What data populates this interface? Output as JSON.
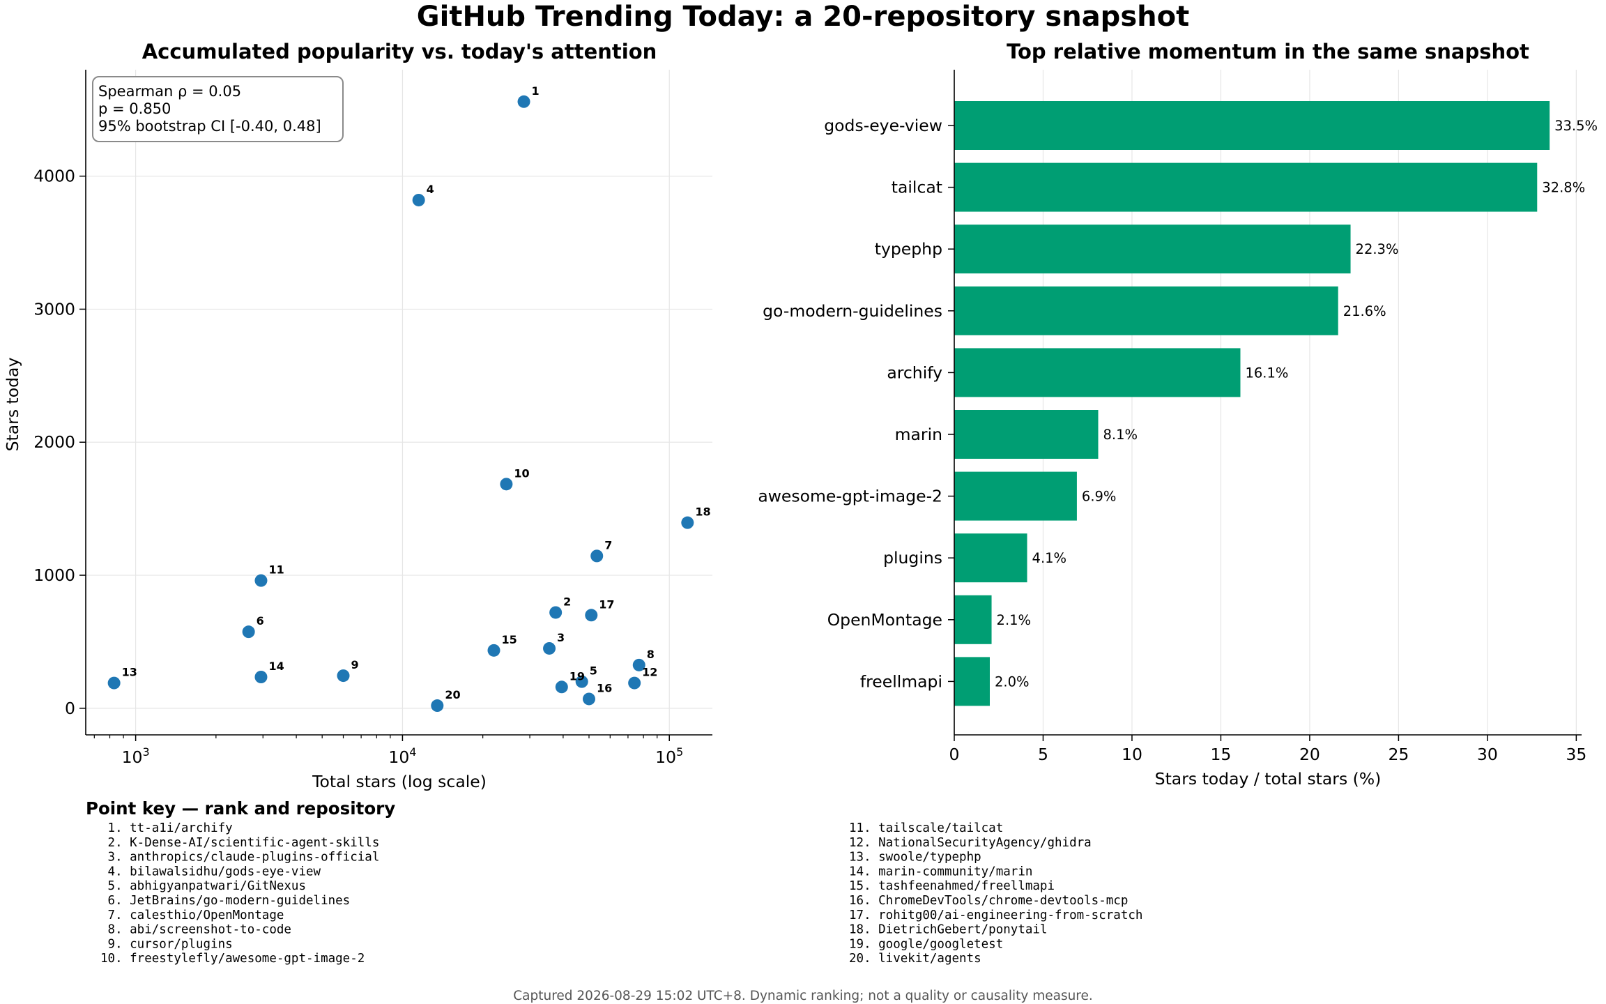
{
  "figure": {
    "title": "GitHub Trending Today: a 20-repository snapshot",
    "footer": "Captured 2026-08-29 15:02 UTC+8. Dynamic ranking; not a quality or causality measure."
  },
  "stats_box": {
    "line1": "Spearman ρ = 0.05",
    "line2": "p = 0.850",
    "line3": "95% bootstrap CI [-0.40, 0.48]"
  },
  "point_key": {
    "title": "Point key — rank and repository",
    "items": [
      " 1. tt-a1i/archify",
      " 2. K-Dense-AI/scientific-agent-skills",
      " 3. anthropics/claude-plugins-official",
      " 4. bilawalsidhu/gods-eye-view",
      " 5. abhigyanpatwari/GitNexus",
      " 6. JetBrains/go-modern-guidelines",
      " 7. calesthio/OpenMontage",
      " 8. abi/screenshot-to-code",
      " 9. cursor/plugins",
      "10. freestylefly/awesome-gpt-image-2",
      "11. tailscale/tailcat",
      "12. NationalSecurityAgency/ghidra",
      "13. swoole/typephp",
      "14. marin-community/marin",
      "15. tashfeenahmed/freellmapi",
      "16. ChromeDevTools/chrome-devtools-mcp",
      "17. rohitg00/ai-engineering-from-scratch",
      "18. DietrichGebert/ponytail",
      "19. google/googletest",
      "20. livekit/agents"
    ]
  },
  "colors": {
    "scatter": "#1f77b4",
    "bar": "#009e73",
    "grid": "#e6e6e6"
  },
  "chart_data": [
    {
      "type": "scatter",
      "title": "Accumulated popularity vs. today's attention",
      "xlabel": "Total stars (log scale)",
      "ylabel": "Stars today",
      "xscale": "log",
      "xlim": [
        650,
        145000
      ],
      "ylim": [
        -200,
        4800
      ],
      "xticks": [
        1000,
        10000,
        100000
      ],
      "xtick_labels": [
        {
          "base": "10",
          "exp": "3"
        },
        {
          "base": "10",
          "exp": "4"
        },
        {
          "base": "10",
          "exp": "5"
        }
      ],
      "yticks": [
        0,
        1000,
        2000,
        3000,
        4000
      ],
      "ytick_labels": [
        "0",
        "1000",
        "2000",
        "3000",
        "4000"
      ],
      "grid": true,
      "points": [
        {
          "label": "1",
          "x": 28500,
          "y": 4560
        },
        {
          "label": "2",
          "x": 37500,
          "y": 720
        },
        {
          "label": "3",
          "x": 35500,
          "y": 450
        },
        {
          "label": "4",
          "x": 11500,
          "y": 3820
        },
        {
          "label": "5",
          "x": 47000,
          "y": 200
        },
        {
          "label": "6",
          "x": 2650,
          "y": 575
        },
        {
          "label": "7",
          "x": 53500,
          "y": 1145
        },
        {
          "label": "8",
          "x": 77000,
          "y": 325
        },
        {
          "label": "9",
          "x": 6000,
          "y": 245
        },
        {
          "label": "10",
          "x": 24500,
          "y": 1685
        },
        {
          "label": "11",
          "x": 2950,
          "y": 960
        },
        {
          "label": "12",
          "x": 74000,
          "y": 190
        },
        {
          "label": "13",
          "x": 830,
          "y": 190
        },
        {
          "label": "14",
          "x": 2950,
          "y": 235
        },
        {
          "label": "15",
          "x": 22000,
          "y": 435
        },
        {
          "label": "16",
          "x": 50000,
          "y": 70
        },
        {
          "label": "17",
          "x": 51000,
          "y": 700
        },
        {
          "label": "18",
          "x": 117000,
          "y": 1395
        },
        {
          "label": "19",
          "x": 39500,
          "y": 160
        },
        {
          "label": "20",
          "x": 13500,
          "y": 20
        }
      ]
    },
    {
      "type": "bar",
      "orientation": "horizontal",
      "title": "Top relative momentum in the same snapshot",
      "xlabel": "Stars today / total stars (%)",
      "xlim": [
        0,
        35.3
      ],
      "xticks": [
        0,
        5,
        10,
        15,
        20,
        25,
        30,
        35
      ],
      "xtick_labels": [
        "0",
        "5",
        "10",
        "15",
        "20",
        "25",
        "30",
        "35"
      ],
      "grid": true,
      "categories": [
        "gods-eye-view",
        "tailcat",
        "typephp",
        "go-modern-guidelines",
        "archify",
        "marin",
        "awesome-gpt-image-2",
        "plugins",
        "OpenMontage",
        "freellmapi"
      ],
      "values": [
        33.5,
        32.8,
        22.3,
        21.6,
        16.1,
        8.1,
        6.9,
        4.1,
        2.1,
        2.0
      ],
      "value_labels": [
        "33.5%",
        "32.8%",
        "22.3%",
        "21.6%",
        "16.1%",
        "8.1%",
        "6.9%",
        "4.1%",
        "2.1%",
        "2.0%"
      ]
    }
  ]
}
